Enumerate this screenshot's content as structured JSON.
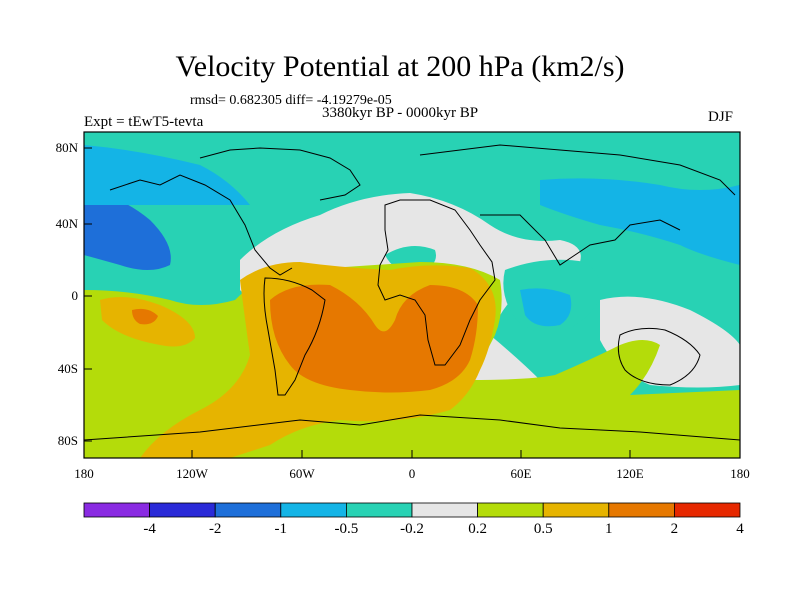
{
  "title": "Velocity Potential at 200 hPa (km2/s)",
  "stats": "rmsd= 0.682305 diff= -4.19279e-05",
  "period": "3380kyr BP - 0000kyr BP",
  "experiment": "Expt = tEwT5-tevta",
  "season": "DJF",
  "map": {
    "y_axis_labels": [
      "80N",
      "40N",
      "0",
      "40S",
      "80S"
    ],
    "x_axis_labels": [
      "180",
      "120W",
      "60W",
      "0",
      "60E",
      "120E",
      "180"
    ]
  },
  "colorbar": {
    "labels": [
      "-4",
      "-2",
      "-1",
      "-0.5",
      "-0.2",
      "0.2",
      "0.5",
      "1",
      "2",
      "4"
    ],
    "colors": [
      "#8a2be2",
      "#2a2ad8",
      "#1e6fd9",
      "#14b4e6",
      "#28d2b4",
      "#e6e6e6",
      "#b4dc0a",
      "#e6b400",
      "#e67800",
      "#e62800"
    ]
  }
}
